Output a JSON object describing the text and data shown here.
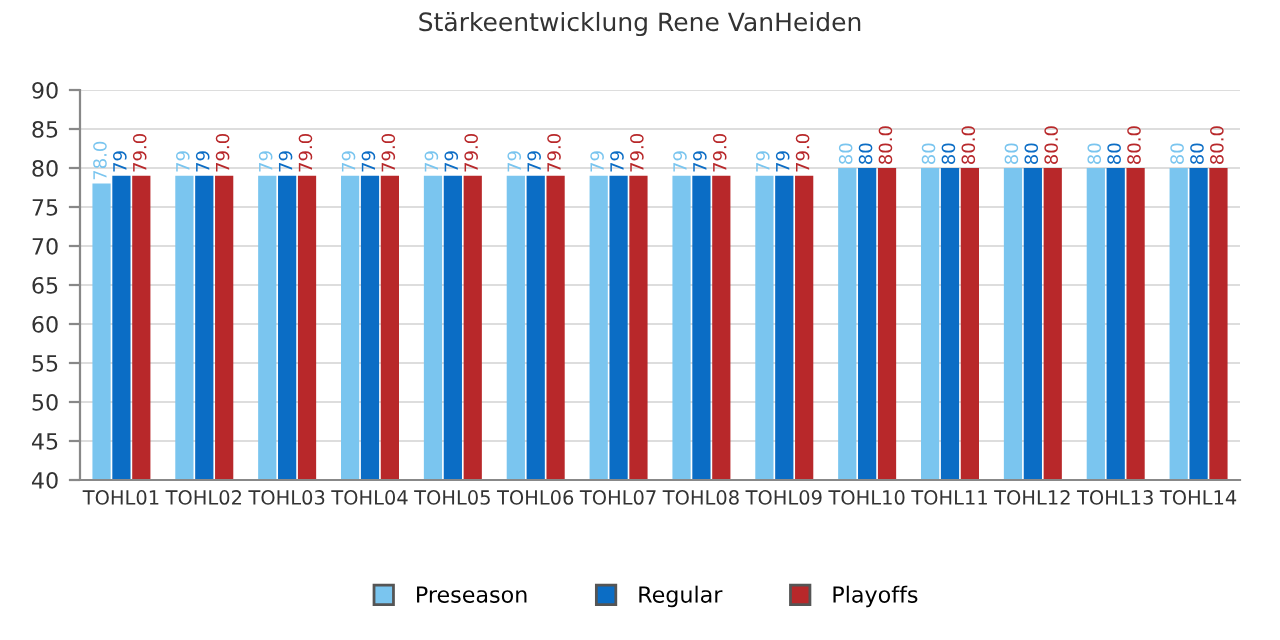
{
  "chart_data": {
    "type": "bar",
    "title": "Stärkeentwicklung Rene VanHeiden",
    "categories": [
      "TOHL01",
      "TOHL02",
      "TOHL03",
      "TOHL04",
      "TOHL05",
      "TOHL06",
      "TOHL07",
      "TOHL08",
      "TOHL09",
      "TOHL10",
      "TOHL11",
      "TOHL12",
      "TOHL13",
      "TOHL14"
    ],
    "series": [
      {
        "name": "Preseason",
        "color": "#7ac5ef",
        "values": [
          78,
          79,
          79,
          79,
          79,
          79,
          79,
          79,
          79,
          80,
          80,
          80,
          80,
          80
        ],
        "value_labels": [
          "78.0",
          "79",
          "79",
          "79",
          "79",
          "79",
          "79",
          "79",
          "79",
          "80",
          "80",
          "80",
          "80",
          "80"
        ]
      },
      {
        "name": "Regular",
        "color": "#0b6dc5",
        "values": [
          79,
          79,
          79,
          79,
          79,
          79,
          79,
          79,
          79,
          80,
          80,
          80,
          80,
          80
        ],
        "value_labels": [
          "79",
          "79",
          "79",
          "79",
          "79",
          "79",
          "79",
          "79",
          "79",
          "80",
          "80",
          "80",
          "80",
          "80"
        ]
      },
      {
        "name": "Playoffs",
        "color": "#b8282a",
        "values": [
          79,
          79,
          79,
          79,
          79,
          79,
          79,
          79,
          79,
          80,
          80,
          80,
          80,
          80
        ],
        "value_labels": [
          "79.0",
          "79.0",
          "79.0",
          "79.0",
          "79.0",
          "79.0",
          "79.0",
          "79.0",
          "79.0",
          "80.0",
          "80.0",
          "80.0",
          "80.0",
          "80.0"
        ]
      }
    ],
    "ylim": [
      40,
      90
    ],
    "yticks": [
      40,
      45,
      50,
      55,
      60,
      65,
      70,
      75,
      80,
      85,
      90
    ],
    "grid": "y",
    "legend": "bottom"
  }
}
